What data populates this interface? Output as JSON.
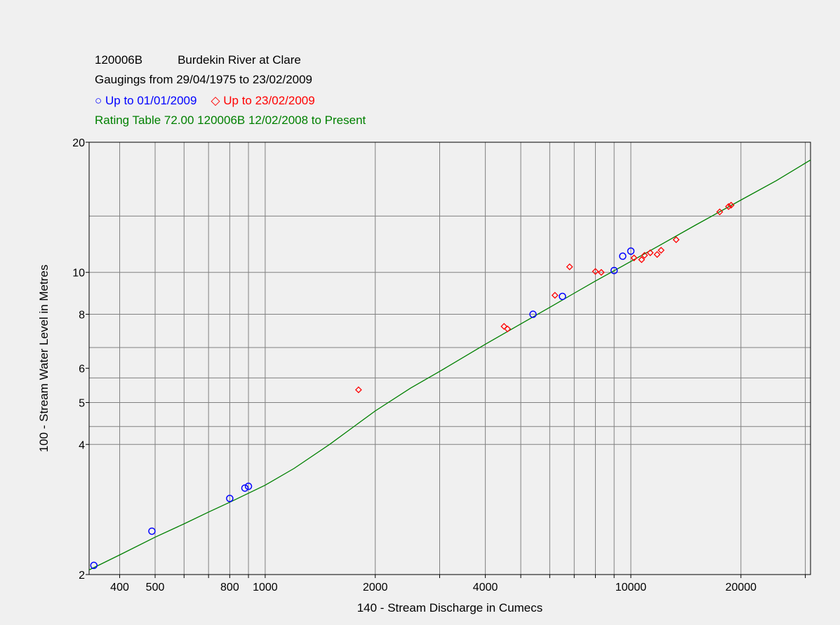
{
  "header": {
    "station_id": "120006B",
    "station_name": "Burdekin River at Clare",
    "gaugings_range": "Gaugings from 29/04/1975 to 23/02/2009",
    "rating": "Rating Table  72.00  120006B  12/02/2008 to Present"
  },
  "colors": {
    "series1": "#0000ff",
    "series2": "#ff0000",
    "rating": "#008000",
    "grid": "#808080",
    "axis": "#000000",
    "background": "#f0f0f0"
  },
  "chart_data": {
    "type": "scatter",
    "title": "",
    "xlabel": "140 - Stream Discharge in Cumecs",
    "ylabel": "100 - Stream Water Level in Metres",
    "x_scale": "log",
    "y_scale": "log",
    "xlim": [
      330,
      31000
    ],
    "ylim": [
      2,
      20
    ],
    "x_tick_labels": [
      "400",
      "500",
      "800",
      "1000",
      "2000",
      "4000",
      "10000",
      "20000"
    ],
    "y_tick_labels": [
      "2",
      "4",
      "5",
      "6",
      "8",
      "10",
      "20"
    ],
    "x_gridlines": [
      400,
      500,
      600,
      700,
      800,
      900,
      1000,
      2000,
      3000,
      4000,
      5000,
      6000,
      7000,
      8000,
      9000,
      10000,
      20000,
      30000
    ],
    "y_gridlines": [
      4,
      4.4,
      5,
      5.7,
      6.7,
      8,
      10,
      13.5
    ],
    "grid": true,
    "legend_placement": "above-plot-left",
    "series": [
      {
        "name": "Up to 01/01/2009",
        "marker": "circle",
        "points": [
          [
            340,
            2.1
          ],
          [
            490,
            2.52
          ],
          [
            800,
            3.0
          ],
          [
            880,
            3.17
          ],
          [
            900,
            3.2
          ],
          [
            5400,
            8.0
          ],
          [
            6500,
            8.8
          ],
          [
            9000,
            10.1
          ],
          [
            9500,
            10.9
          ],
          [
            10000,
            11.2
          ]
        ]
      },
      {
        "name": "Up to 23/02/2009",
        "marker": "diamond",
        "points": [
          [
            1800,
            5.35
          ],
          [
            4500,
            7.5
          ],
          [
            4600,
            7.4
          ],
          [
            6200,
            8.85
          ],
          [
            6800,
            10.3
          ],
          [
            8000,
            10.05
          ],
          [
            8300,
            10.0
          ],
          [
            10200,
            10.8
          ],
          [
            10700,
            10.7
          ],
          [
            10900,
            10.95
          ],
          [
            11300,
            11.1
          ],
          [
            11800,
            11.0
          ],
          [
            12100,
            11.25
          ],
          [
            13300,
            11.9
          ],
          [
            17500,
            13.8
          ],
          [
            18500,
            14.2
          ],
          [
            18800,
            14.3
          ]
        ]
      },
      {
        "name": "Rating Table  72.00  120006B  12/02/2008 to Present",
        "marker": "line",
        "points": [
          [
            330,
            2.05
          ],
          [
            400,
            2.22
          ],
          [
            500,
            2.44
          ],
          [
            600,
            2.62
          ],
          [
            700,
            2.79
          ],
          [
            800,
            2.94
          ],
          [
            1000,
            3.22
          ],
          [
            1200,
            3.52
          ],
          [
            1500,
            4.0
          ],
          [
            2000,
            4.78
          ],
          [
            2500,
            5.4
          ],
          [
            3000,
            5.9
          ],
          [
            4000,
            6.82
          ],
          [
            5000,
            7.6
          ],
          [
            6000,
            8.3
          ],
          [
            7000,
            8.95
          ],
          [
            8000,
            9.55
          ],
          [
            10000,
            10.6
          ],
          [
            12000,
            11.55
          ],
          [
            15000,
            12.85
          ],
          [
            20000,
            14.7
          ],
          [
            25000,
            16.3
          ],
          [
            31000,
            18.2
          ]
        ]
      }
    ]
  }
}
